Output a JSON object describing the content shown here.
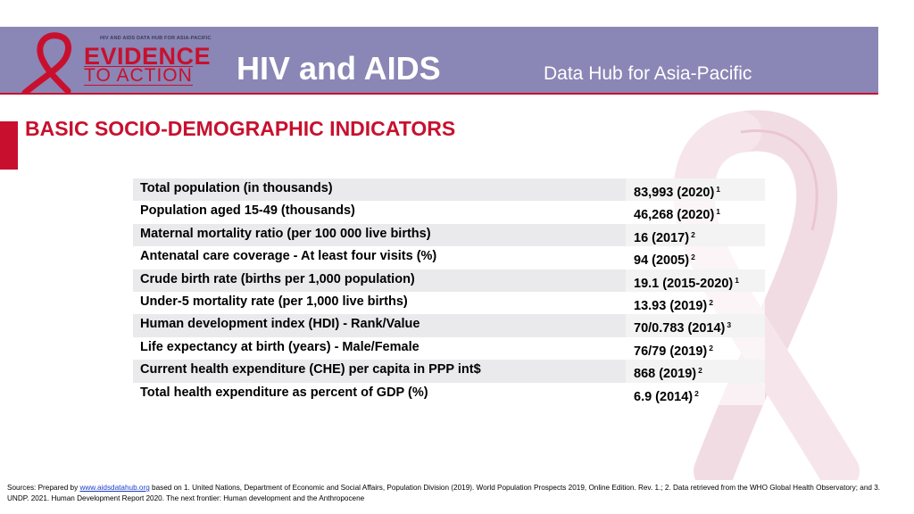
{
  "header": {
    "logo_tagline": "HIV AND AIDS DATA HUB FOR ASIA-PACIFIC",
    "logo_line1": "EVIDENCE",
    "logo_line2": "TO ACTION",
    "title": "HIV and AIDS",
    "subtitle": "Data Hub for Asia-Pacific"
  },
  "section": {
    "heading": "BASIC SOCIO-DEMOGRAPHIC INDICATORS"
  },
  "colors": {
    "header_band": "#8a86b5",
    "accent_red": "#c8102e",
    "ribbon_pink": "#f2dce3"
  },
  "indicators": [
    {
      "label": "Total population (in thousands)",
      "value": "83,993 (2020)",
      "ref": "1"
    },
    {
      "label": "Population aged 15-49 (thousands)",
      "value": "46,268 (2020)",
      "ref": "1"
    },
    {
      "label": "Maternal mortality ratio (per 100 000 live births)",
      "value": "16 (2017)",
      "ref": "2"
    },
    {
      "label": "Antenatal care coverage -  At least four visits (%)",
      "value": "94 (2005)",
      "ref": "2"
    },
    {
      "label": "Crude birth rate (births per 1,000 population)",
      "value": "19.1 (2015-2020)",
      "ref": "1"
    },
    {
      "label": "Under-5 mortality rate (per 1,000 live births)",
      "value": "13.93 (2019)",
      "ref": "2"
    },
    {
      "label": "Human development index (HDI) - Rank/Value",
      "value": "70/0.783 (2014)",
      "ref": "3"
    },
    {
      "label": "Life expectancy at birth (years) - Male/Female",
      "value": "76/79 (2019)",
      "ref": "2"
    },
    {
      "label": "Current health expenditure (CHE) per capita in PPP int$",
      "value": "868 (2019)",
      "ref": "2"
    },
    {
      "label": "Total health expenditure as percent of GDP (%)",
      "value": "6.9 (2014)",
      "ref": "2"
    }
  ],
  "sources": {
    "prefix": "Sources: Prepared by ",
    "link": "www.aidsdatahub.org",
    "text": " based on 1. United Nations, Department of Economic and Social Affairs, Population Division (2019). World Population Prospects 2019, Online Edition. Rev. 1.; 2. Data retrieved from the WHO Global Health Observatory; and 3. UNDP. 2021. Human Development Report 2020. The next frontier: Human development and the Anthropocene"
  }
}
